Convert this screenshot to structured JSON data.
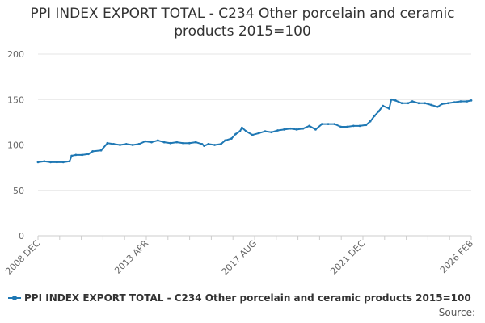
{
  "chart_data": {
    "type": "line",
    "title": "PPI INDEX EXPORT TOTAL - C234 Other porcelain and ceramic products 2015=100",
    "xlabel": "",
    "ylabel": "",
    "ylim": [
      0,
      200
    ],
    "y_ticks": [
      "0",
      "50",
      "100",
      "150",
      "200"
    ],
    "x_ticks": [
      "2008 DEC",
      "2013 APR",
      "2017 AUG",
      "2021 DEC",
      "2026 FEB"
    ],
    "x_range": [
      "2008-12",
      "2026-02"
    ],
    "grid": true,
    "legend_position": "bottom",
    "series": [
      {
        "name": "PPI INDEX EXPORT TOTAL - C234 Other porcelain and ceramic products 2015=100",
        "color": "#1f78b4",
        "points": [
          [
            "2008-12",
            81
          ],
          [
            "2009-03",
            82
          ],
          [
            "2009-06",
            81
          ],
          [
            "2009-09",
            81
          ],
          [
            "2009-12",
            81
          ],
          [
            "2010-03",
            82
          ],
          [
            "2010-04",
            88
          ],
          [
            "2010-06",
            89
          ],
          [
            "2010-09",
            89
          ],
          [
            "2010-12",
            90
          ],
          [
            "2011-02",
            93
          ],
          [
            "2011-06",
            94
          ],
          [
            "2011-09",
            102
          ],
          [
            "2011-12",
            101
          ],
          [
            "2012-03",
            100
          ],
          [
            "2012-06",
            101
          ],
          [
            "2012-09",
            100
          ],
          [
            "2012-12",
            101
          ],
          [
            "2013-03",
            104
          ],
          [
            "2013-06",
            103
          ],
          [
            "2013-09",
            105
          ],
          [
            "2013-12",
            103
          ],
          [
            "2014-03",
            102
          ],
          [
            "2014-06",
            103
          ],
          [
            "2014-09",
            102
          ],
          [
            "2014-12",
            102
          ],
          [
            "2015-03",
            103
          ],
          [
            "2015-06",
            101
          ],
          [
            "2015-07",
            99
          ],
          [
            "2015-09",
            101
          ],
          [
            "2015-12",
            100
          ],
          [
            "2016-03",
            101
          ],
          [
            "2016-05",
            105
          ],
          [
            "2016-08",
            107
          ],
          [
            "2016-10",
            112
          ],
          [
            "2016-12",
            115
          ],
          [
            "2017-01",
            119
          ],
          [
            "2017-03",
            115
          ],
          [
            "2017-06",
            111
          ],
          [
            "2017-09",
            113
          ],
          [
            "2017-12",
            115
          ],
          [
            "2018-03",
            114
          ],
          [
            "2018-06",
            116
          ],
          [
            "2018-09",
            117
          ],
          [
            "2018-12",
            118
          ],
          [
            "2019-03",
            117
          ],
          [
            "2019-06",
            118
          ],
          [
            "2019-09",
            121
          ],
          [
            "2019-12",
            117
          ],
          [
            "2020-03",
            123
          ],
          [
            "2020-06",
            123
          ],
          [
            "2020-09",
            123
          ],
          [
            "2020-12",
            120
          ],
          [
            "2021-03",
            120
          ],
          [
            "2021-06",
            121
          ],
          [
            "2021-09",
            121
          ],
          [
            "2021-12",
            122
          ],
          [
            "2022-02",
            126
          ],
          [
            "2022-04",
            132
          ],
          [
            "2022-06",
            137
          ],
          [
            "2022-08",
            143
          ],
          [
            "2022-11",
            140
          ],
          [
            "2022-12",
            150
          ],
          [
            "2023-02",
            149
          ],
          [
            "2023-05",
            146
          ],
          [
            "2023-08",
            146
          ],
          [
            "2023-10",
            148
          ],
          [
            "2024-01",
            146
          ],
          [
            "2024-04",
            146
          ],
          [
            "2024-07",
            144
          ],
          [
            "2024-10",
            142
          ],
          [
            "2024-12",
            145
          ],
          [
            "2025-03",
            146
          ],
          [
            "2025-06",
            147
          ],
          [
            "2025-09",
            148
          ],
          [
            "2025-12",
            148
          ],
          [
            "2026-02",
            149
          ]
        ]
      }
    ]
  },
  "footer": {
    "source_label": "Source:"
  }
}
